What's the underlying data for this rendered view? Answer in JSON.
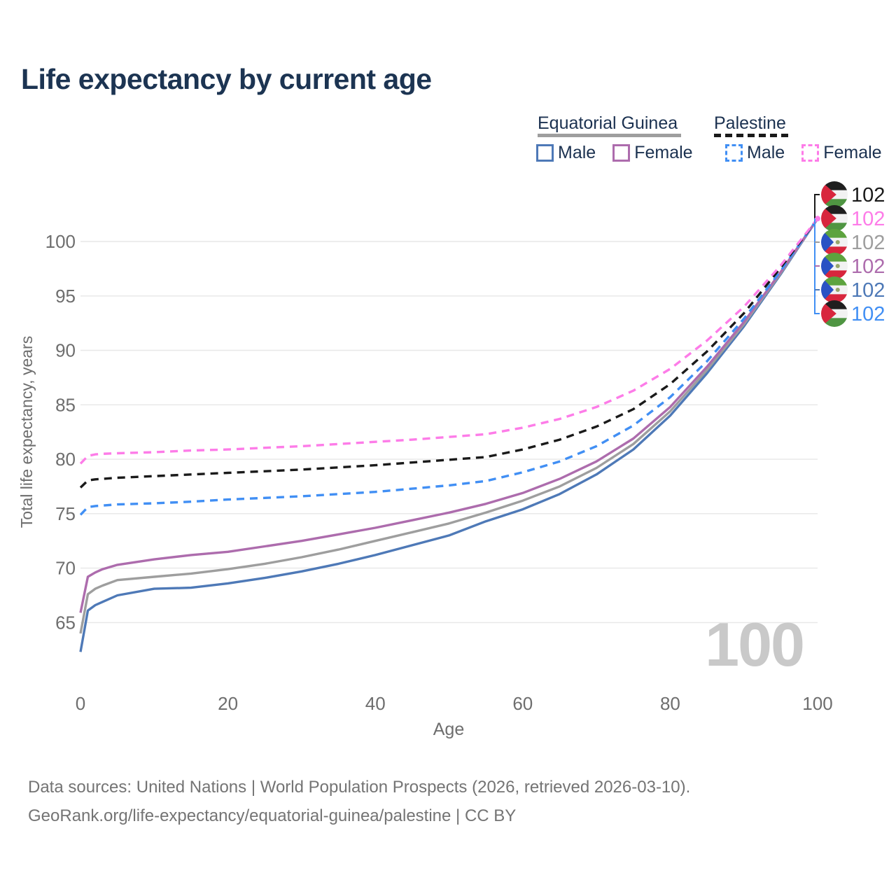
{
  "title": "Life expectancy by current age",
  "legend": {
    "groups": [
      {
        "name": "Equatorial Guinea",
        "line_style": "solid",
        "line_color": "#9e9e9e",
        "items": [
          {
            "label": "Male",
            "color": "#4e79b7"
          },
          {
            "label": "Female",
            "color": "#ad6cad"
          }
        ]
      },
      {
        "name": "Palestine",
        "line_style": "dashed",
        "line_color": "#1a1a1a",
        "items": [
          {
            "label": "Male",
            "color": "#418ff4"
          },
          {
            "label": "Female",
            "color": "#fd7ce8"
          }
        ]
      }
    ]
  },
  "chart_data": {
    "type": "line",
    "title": "Life expectancy by current age",
    "xlabel": "Age",
    "ylabel": "Total life expectancy, years",
    "xlim": [
      0,
      100
    ],
    "ylim": [
      62,
      103.5
    ],
    "xticks": [
      0,
      20,
      40,
      60,
      80,
      100
    ],
    "yticks": [
      65,
      70,
      75,
      80,
      85,
      90,
      95,
      100
    ],
    "grid": "horizontal",
    "legend_position": "top-right",
    "x": [
      0,
      1,
      2,
      3,
      5,
      10,
      15,
      20,
      25,
      30,
      35,
      40,
      45,
      50,
      55,
      60,
      65,
      70,
      75,
      80,
      85,
      90,
      95,
      100
    ],
    "series": [
      {
        "name": "Equatorial Guinea Male",
        "color": "#4e79b7",
        "dashed": false,
        "values": [
          62.3,
          66.1,
          66.6,
          66.9,
          67.5,
          68.1,
          68.2,
          68.6,
          69.1,
          69.7,
          70.4,
          71.2,
          72.1,
          73.0,
          74.3,
          75.4,
          76.8,
          78.6,
          80.9,
          84.0,
          87.9,
          92.2,
          97.0,
          102.1
        ]
      },
      {
        "name": "Equatorial Guinea Both sexes",
        "color": "#9e9e9e",
        "dashed": false,
        "values": [
          64.0,
          67.6,
          68.1,
          68.4,
          68.9,
          69.2,
          69.5,
          69.9,
          70.4,
          71.0,
          71.7,
          72.5,
          73.3,
          74.1,
          75.1,
          76.2,
          77.5,
          79.2,
          81.4,
          84.4,
          88.2,
          92.4,
          97.1,
          102.1
        ]
      },
      {
        "name": "Equatorial Guinea Female",
        "color": "#ad6cad",
        "dashed": false,
        "values": [
          65.9,
          69.2,
          69.6,
          69.9,
          70.3,
          70.8,
          71.2,
          71.5,
          72.0,
          72.5,
          73.1,
          73.7,
          74.4,
          75.1,
          75.9,
          76.9,
          78.2,
          79.8,
          81.9,
          84.8,
          88.5,
          92.6,
          97.2,
          102.1
        ]
      },
      {
        "name": "Palestine Male",
        "color": "#418ff4",
        "dashed": true,
        "values": [
          74.9,
          75.6,
          75.7,
          75.75,
          75.85,
          75.95,
          76.1,
          76.3,
          76.45,
          76.6,
          76.8,
          77.0,
          77.3,
          77.6,
          78.0,
          78.8,
          79.8,
          81.2,
          83.1,
          85.7,
          89.0,
          92.9,
          97.3,
          102.1
        ]
      },
      {
        "name": "Palestine Both sexes",
        "color": "#1a1a1a",
        "dashed": true,
        "values": [
          77.4,
          78.05,
          78.15,
          78.2,
          78.3,
          78.45,
          78.6,
          78.75,
          78.9,
          79.05,
          79.25,
          79.45,
          79.7,
          79.95,
          80.2,
          80.9,
          81.8,
          83.0,
          84.6,
          86.9,
          89.9,
          93.4,
          97.6,
          102.1
        ]
      },
      {
        "name": "Palestine Female",
        "color": "#fd7ce8",
        "dashed": true,
        "values": [
          79.6,
          80.3,
          80.45,
          80.5,
          80.55,
          80.65,
          80.8,
          80.9,
          81.05,
          81.2,
          81.4,
          81.6,
          81.8,
          82.05,
          82.3,
          82.9,
          83.7,
          84.8,
          86.3,
          88.3,
          90.9,
          94.0,
          97.8,
          102.1
        ]
      }
    ]
  },
  "end_labels": [
    {
      "country": "palestine",
      "series": "Palestine Both sexes",
      "value": "102",
      "color": "#1a1a1a"
    },
    {
      "country": "palestine",
      "series": "Palestine Female",
      "value": "102",
      "color": "#fd7ce8"
    },
    {
      "country": "equatorial-guinea",
      "series": "Equatorial Guinea Both sexes",
      "value": "102",
      "color": "#9e9e9e"
    },
    {
      "country": "equatorial-guinea",
      "series": "Equatorial Guinea Female",
      "value": "102",
      "color": "#ad6cad"
    },
    {
      "country": "equatorial-guinea",
      "series": "Equatorial Guinea Male",
      "value": "102",
      "color": "#4e79b7"
    },
    {
      "country": "palestine",
      "series": "Palestine Male",
      "value": "102",
      "color": "#418ff4"
    }
  ],
  "watermark": "100",
  "footer": {
    "line1": "Data sources: United Nations | World Population Prospects (2026, retrieved 2026-03-10).",
    "line2": "GeoRank.org/life-expectancy/equatorial-guinea/palestine | CC BY"
  }
}
